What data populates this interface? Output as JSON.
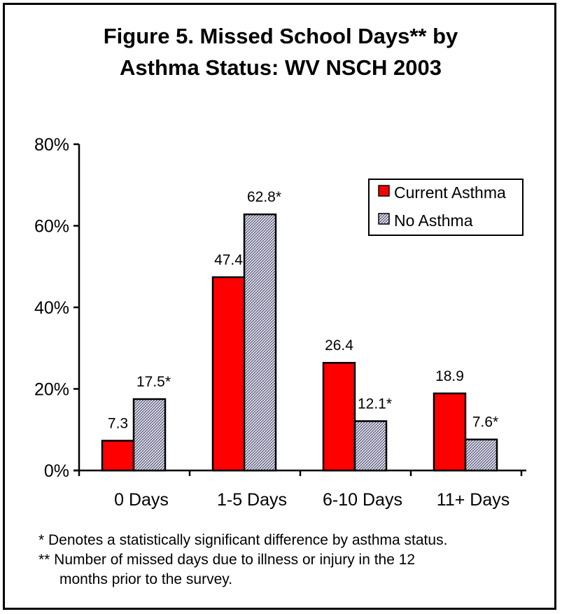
{
  "chart_data": {
    "type": "bar",
    "title_lines": [
      "Figure 5.  Missed School Days** by",
      "Asthma Status: WV NSCH 2003"
    ],
    "categories": [
      "0 Days",
      "1-5 Days",
      "6-10 Days",
      "11+ Days"
    ],
    "series": [
      {
        "name": "Current Asthma",
        "values": [
          7.3,
          47.4,
          26.4,
          18.9
        ],
        "labels": [
          "7.3",
          "47.4",
          "26.4",
          "18.9"
        ],
        "color": "#ff0000",
        "pattern": "solid"
      },
      {
        "name": "No Asthma",
        "values": [
          17.5,
          62.8,
          12.1,
          7.6
        ],
        "labels": [
          "17.5*",
          "62.8*",
          "12.1*",
          "7.6*"
        ],
        "color": "#6666aa",
        "pattern": "crosshatch"
      }
    ],
    "yticks": [
      0,
      20,
      40,
      60,
      80
    ],
    "ytick_labels": [
      "0%",
      "20%",
      "40%",
      "60%",
      "80%"
    ],
    "ylim": [
      0,
      80
    ],
    "grid": false,
    "legend_position": "top-right",
    "footnotes": [
      "* Denotes a statistically significant difference by asthma status.",
      "** Number of missed days due to illness or injury in the 12",
      "months prior to the survey."
    ]
  }
}
